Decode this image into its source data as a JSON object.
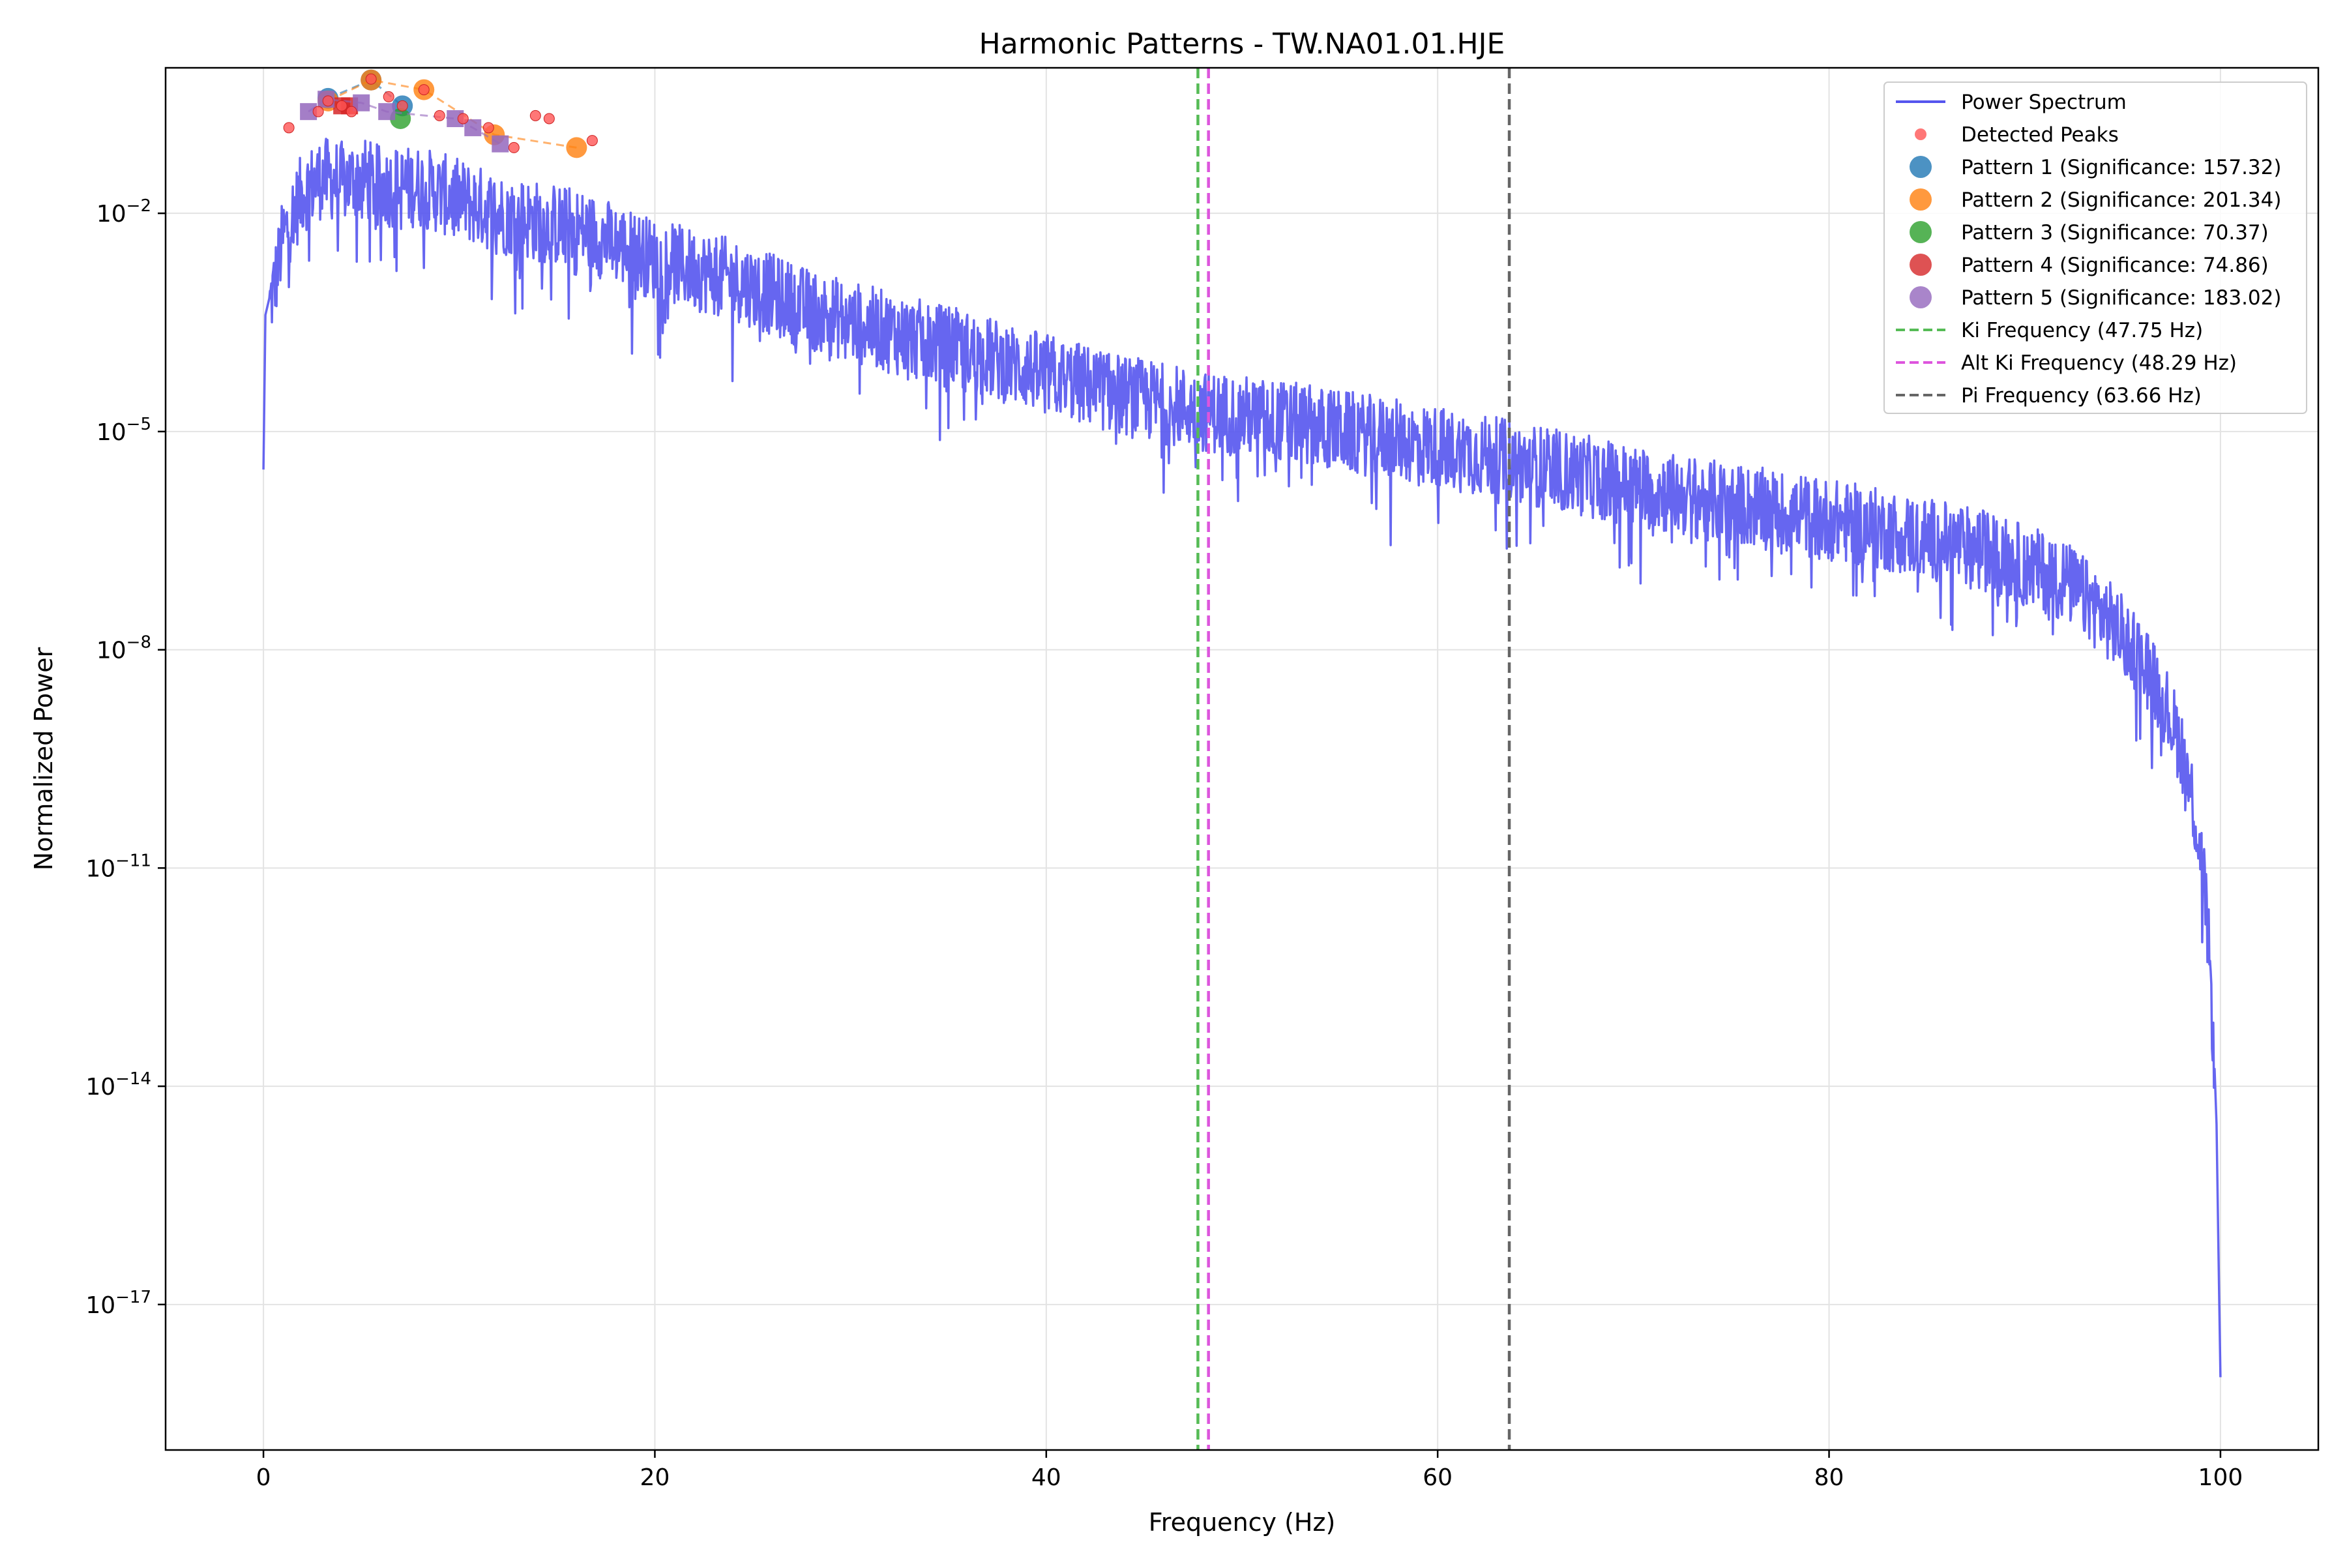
{
  "chart_data": {
    "type": "line",
    "title": "Harmonic Patterns - TW.NA01.01.HJE",
    "xlabel": "Frequency (Hz)",
    "ylabel": "Normalized Power",
    "xlim": [
      -5,
      105
    ],
    "ylim": [
      1e-19,
      1.0
    ],
    "yscale": "log",
    "grid": true,
    "legend_position": "top-right",
    "x_ticks": [
      0,
      20,
      40,
      60,
      80,
      100
    ],
    "x_tick_labels": [
      "0",
      "20",
      "40",
      "60",
      "80",
      "100"
    ],
    "y_ticks": [
      1e-17,
      1e-14,
      1e-11,
      1e-08,
      1e-05,
      0.01
    ],
    "y_tick_labels": [
      {
        "base": "10",
        "exp": "−17"
      },
      {
        "base": "10",
        "exp": "−14"
      },
      {
        "base": "10",
        "exp": "−11"
      },
      {
        "base": "10",
        "exp": "−8"
      },
      {
        "base": "10",
        "exp": "−5"
      },
      {
        "base": "10",
        "exp": "−2"
      }
    ],
    "spectrum": {
      "name": "Power Spectrum",
      "color": "#5555ee",
      "envelope": [
        [
          0.0,
          3e-06
        ],
        [
          0.1,
          0.0004
        ],
        [
          0.6,
          0.0015
        ],
        [
          1.0,
          0.006
        ],
        [
          2.0,
          0.025
        ],
        [
          3.0,
          0.04
        ],
        [
          4.0,
          0.035
        ],
        [
          5.0,
          0.04
        ],
        [
          6.0,
          0.03
        ],
        [
          7.0,
          0.03
        ],
        [
          8.0,
          0.03
        ],
        [
          10.0,
          0.02
        ],
        [
          12.0,
          0.013
        ],
        [
          14.0,
          0.01
        ],
        [
          16.0,
          0.008
        ],
        [
          18.0,
          0.005
        ],
        [
          20.0,
          0.003
        ],
        [
          24.0,
          0.0016
        ],
        [
          28.0,
          0.0006
        ],
        [
          32.0,
          0.0003
        ],
        [
          36.0,
          0.00016
        ],
        [
          40.0,
          8e-05
        ],
        [
          44.0,
          4e-05
        ],
        [
          48.0,
          2.5e-05
        ],
        [
          52.0,
          1.8e-05
        ],
        [
          56.0,
          1.2e-05
        ],
        [
          60.0,
          8e-06
        ],
        [
          64.0,
          5e-06
        ],
        [
          68.0,
          3e-06
        ],
        [
          72.0,
          1.8e-06
        ],
        [
          76.0,
          1.2e-06
        ],
        [
          80.0,
          8e-07
        ],
        [
          84.0,
          5e-07
        ],
        [
          88.0,
          3e-07
        ],
        [
          92.0,
          1.2e-07
        ],
        [
          94.0,
          4e-08
        ],
        [
          96.0,
          1e-08
        ],
        [
          97.0,
          3e-09
        ],
        [
          98.0,
          6e-10
        ],
        [
          98.5,
          1.5e-10
        ],
        [
          99.0,
          2e-11
        ],
        [
          99.3,
          3e-12
        ],
        [
          99.6,
          1e-13
        ],
        [
          99.8,
          3e-15
        ],
        [
          99.9,
          5e-17
        ],
        [
          100.0,
          1e-18
        ]
      ]
    },
    "detected_peaks": {
      "name": "Detected Peaks",
      "color": "#ff5555",
      "points": [
        [
          1.3,
          0.15
        ],
        [
          2.8,
          0.25
        ],
        [
          3.3,
          0.35
        ],
        [
          4.0,
          0.3
        ],
        [
          4.5,
          0.25
        ],
        [
          5.5,
          0.7
        ],
        [
          6.4,
          0.4
        ],
        [
          7.1,
          0.3
        ],
        [
          8.2,
          0.5
        ],
        [
          9.0,
          0.22
        ],
        [
          10.2,
          0.2
        ],
        [
          11.5,
          0.15
        ],
        [
          12.8,
          0.08
        ],
        [
          13.9,
          0.22
        ],
        [
          14.6,
          0.2
        ],
        [
          16.8,
          0.1
        ]
      ]
    },
    "patterns": [
      {
        "name": "Pattern 1 (Significance: 157.32)",
        "color": "#1f77b4",
        "points": [
          [
            3.3,
            0.38
          ],
          [
            5.5,
            0.68
          ],
          [
            7.1,
            0.3
          ]
        ]
      },
      {
        "name": "Pattern 2 (Significance: 201.34)",
        "color": "#ff7f0e",
        "points": [
          [
            3.3,
            0.35
          ],
          [
            5.5,
            0.68
          ],
          [
            8.2,
            0.5
          ],
          [
            11.8,
            0.12
          ],
          [
            16.0,
            0.08
          ]
        ]
      },
      {
        "name": "Pattern 3 (Significance: 70.37)",
        "color": "#2ca02c",
        "points": [
          [
            7.0,
            0.2
          ]
        ]
      },
      {
        "name": "Pattern 4 (Significance: 74.86)",
        "color": "#d62728",
        "points": [
          [
            4.0,
            0.3
          ],
          [
            4.4,
            0.3
          ]
        ]
      },
      {
        "name": "Pattern 5 (Significance: 183.02)",
        "color": "#9467bd",
        "points": [
          [
            2.3,
            0.25
          ],
          [
            3.2,
            0.37
          ],
          [
            5.0,
            0.33
          ],
          [
            6.3,
            0.25
          ],
          [
            9.8,
            0.2
          ],
          [
            10.7,
            0.15
          ],
          [
            12.1,
            0.09
          ]
        ]
      }
    ],
    "vertical_lines": [
      {
        "name": "Ki Frequency (47.75 Hz)",
        "x": 47.75,
        "color": "#55bb55"
      },
      {
        "name": "Alt Ki Frequency (48.29 Hz)",
        "x": 48.29,
        "color": "#dd55dd"
      },
      {
        "name": "Pi Frequency (63.66 Hz)",
        "x": 63.66,
        "color": "#666666"
      }
    ]
  }
}
